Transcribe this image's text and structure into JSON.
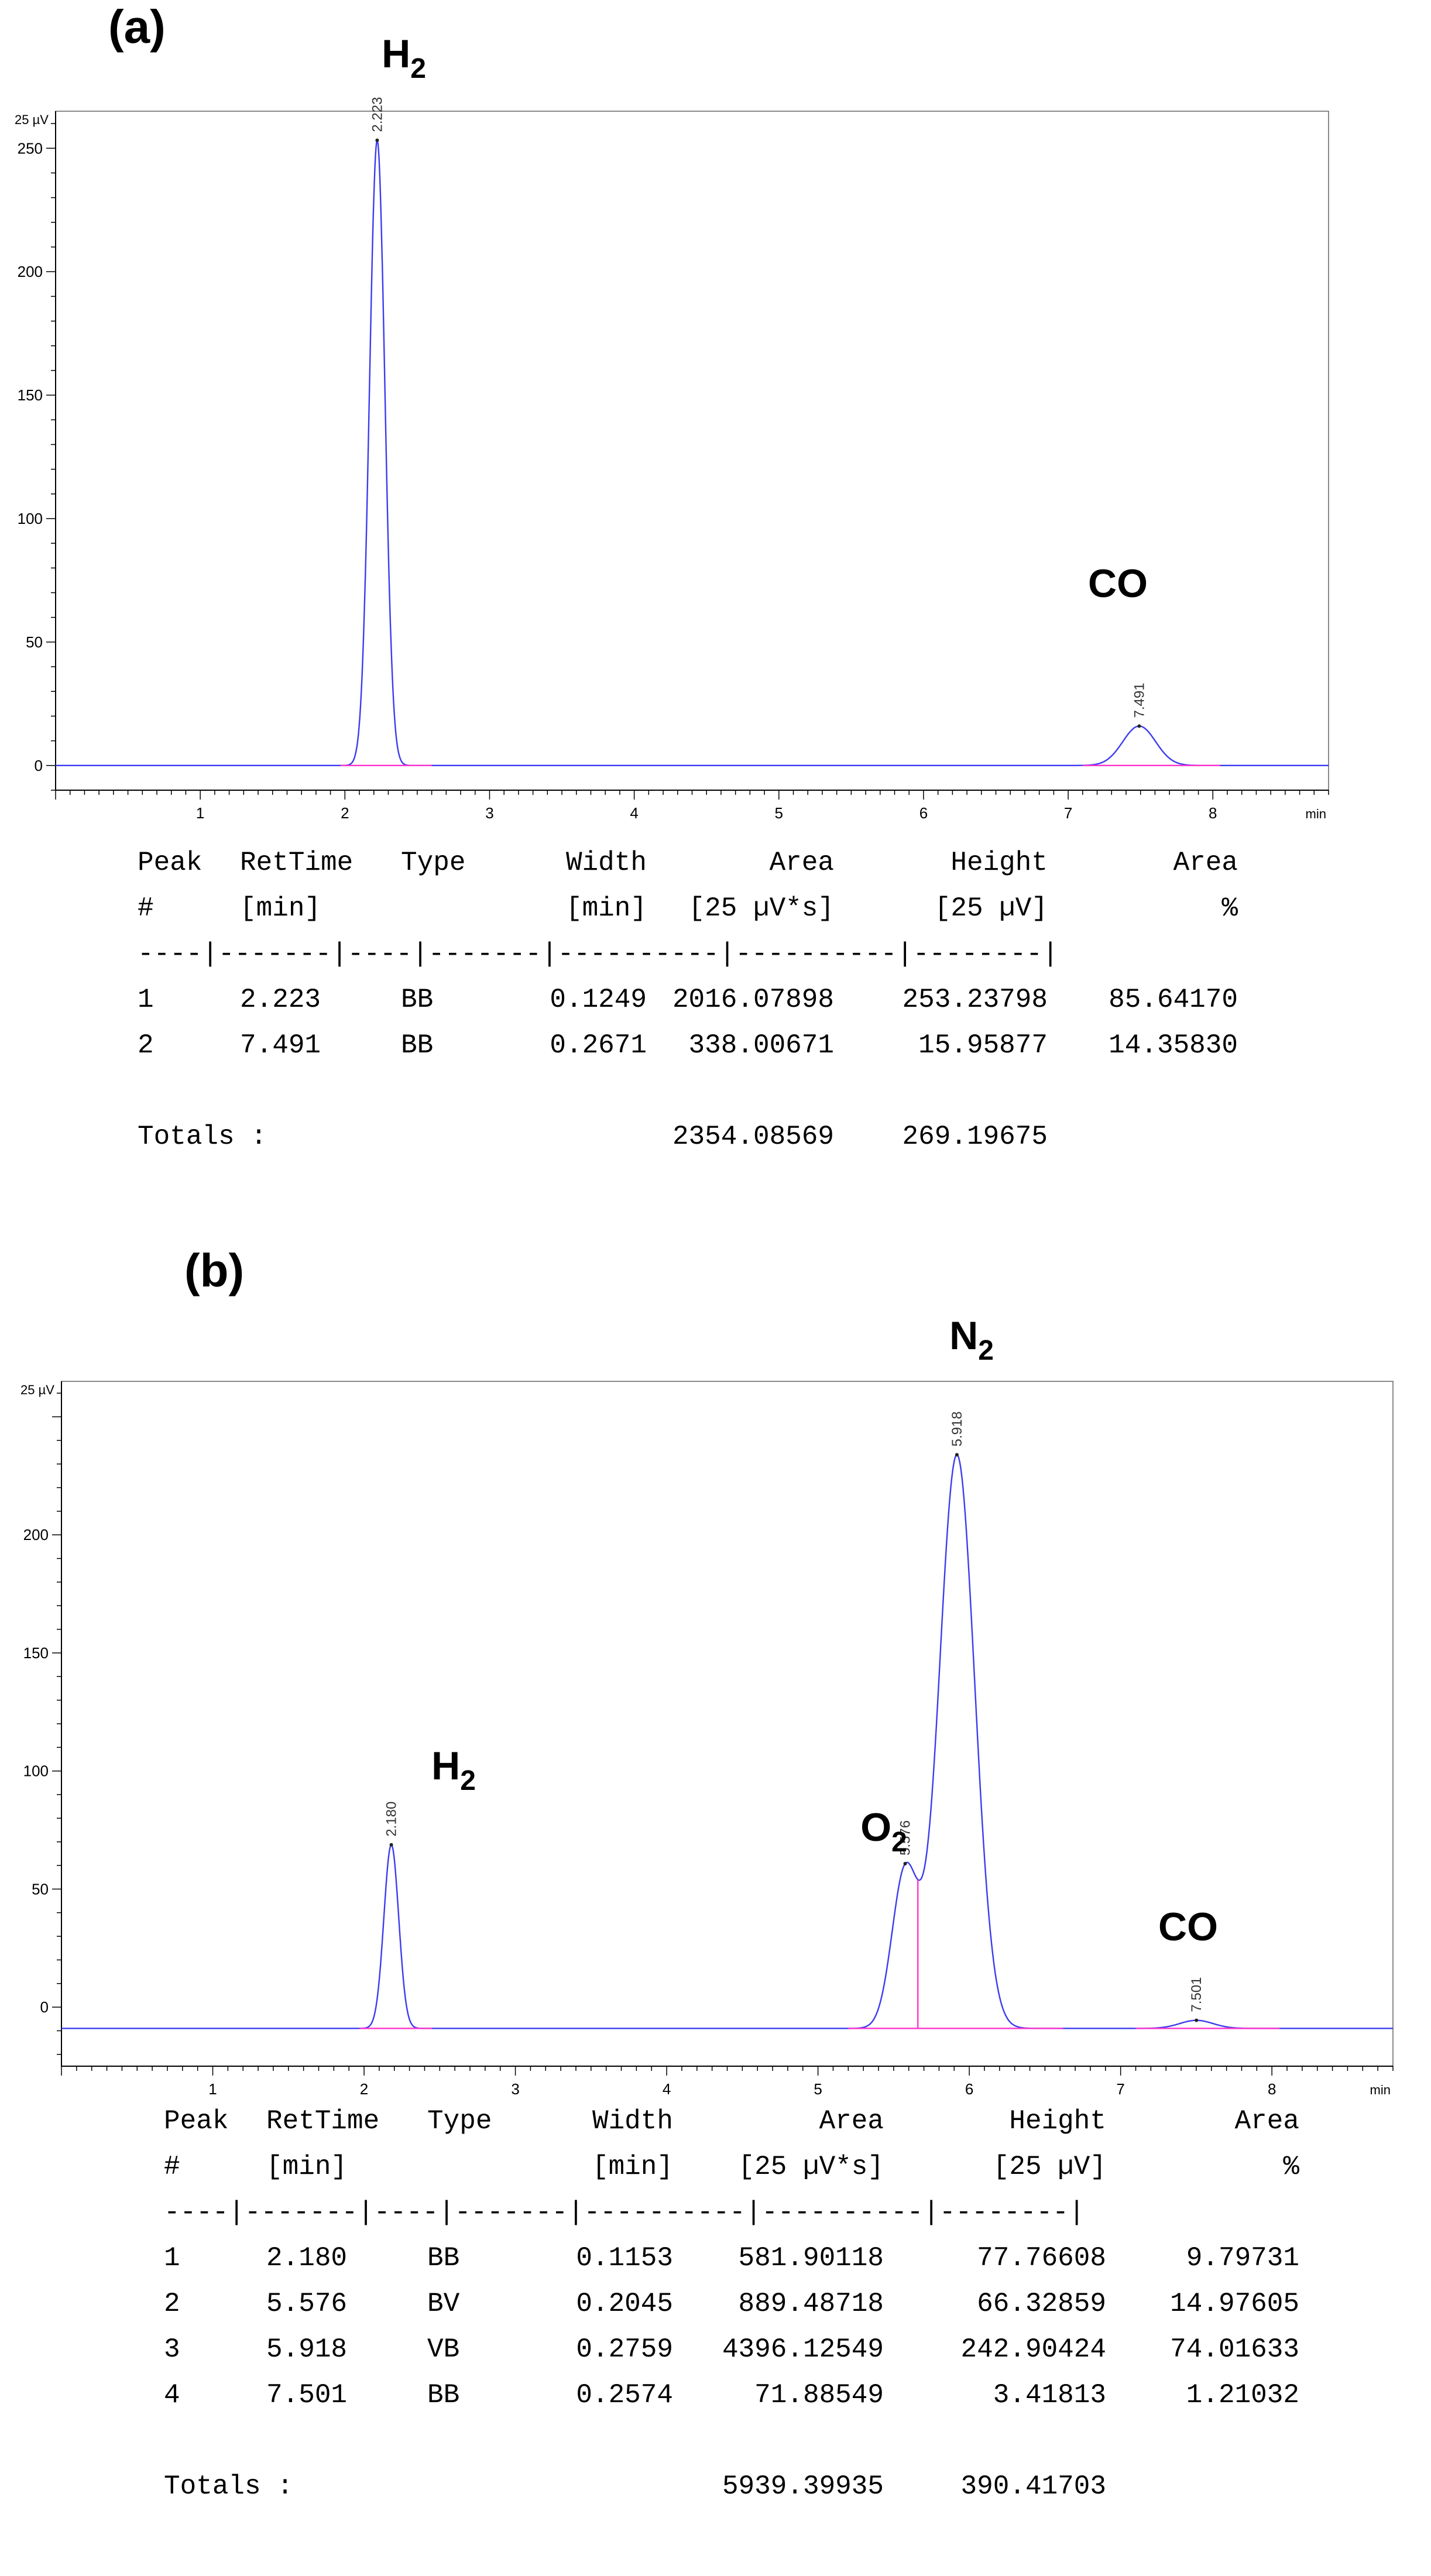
{
  "charts": [
    {
      "panel": "(a)",
      "y_unit": "25 µV",
      "x_unit": "min",
      "compound_labels": [
        {
          "text": "H",
          "sub": "2",
          "rt": 2.223
        },
        {
          "text": "CO",
          "sub": "",
          "rt": 7.491
        }
      ],
      "table": {
        "header1": [
          "Peak",
          "RetTime",
          "Type",
          "Width",
          "Area",
          "Height",
          "Area"
        ],
        "header2": [
          "#",
          "[min]",
          "",
          "[min]",
          "[25 µV*s]",
          "[25 µV]",
          "%"
        ],
        "rows": [
          [
            "1",
            "2.223",
            "BB",
            "0.1249",
            "2016.07898",
            "253.23798",
            "85.64170"
          ],
          [
            "2",
            "7.491",
            "BB",
            "0.2671",
            "338.00671",
            "15.95877",
            "14.35830"
          ]
        ],
        "totals_label": "Totals :",
        "totals_area": "2354.08569",
        "totals_height": "269.19675"
      }
    },
    {
      "panel": "(b)",
      "y_unit": "25 µV",
      "x_unit": "min",
      "compound_labels": [
        {
          "text": "H",
          "sub": "2",
          "rt": 2.18
        },
        {
          "text": "O",
          "sub": "2",
          "rt": 5.576
        },
        {
          "text": "N",
          "sub": "2",
          "rt": 5.918
        },
        {
          "text": "CO",
          "sub": "",
          "rt": 7.501
        }
      ],
      "table": {
        "header1": [
          "Peak",
          "RetTime",
          "Type",
          "Width",
          "Area",
          "Height",
          "Area"
        ],
        "header2": [
          "#",
          "[min]",
          "",
          "[min]",
          "[25 µV*s]",
          "[25 µV]",
          "%"
        ],
        "rows": [
          [
            "1",
            "2.180",
            "BB",
            "0.1153",
            "581.90118",
            "77.76608",
            "9.79731"
          ],
          [
            "2",
            "5.576",
            "BV",
            "0.2045",
            "889.48718",
            "66.32859",
            "14.97605"
          ],
          [
            "3",
            "5.918",
            "VB",
            "0.2759",
            "4396.12549",
            "242.90424",
            "74.01633"
          ],
          [
            "4",
            "7.501",
            "BB",
            "0.2574",
            "71.88549",
            "3.41813",
            "1.21032"
          ]
        ],
        "totals_label": "Totals :",
        "totals_area": "5939.39935",
        "totals_height": "390.41703"
      }
    }
  ],
  "chart_data": [
    {
      "type": "line",
      "x_unit": "min",
      "y_unit": "25 µV",
      "xlim": [
        0,
        8.8
      ],
      "ylim": [
        -10,
        265
      ],
      "x_ticks": [
        1,
        2,
        3,
        4,
        5,
        6,
        7,
        8
      ],
      "y_ticks": [
        0,
        50,
        100,
        150,
        200,
        250
      ],
      "baseline": 0,
      "line_color": "#3b3bf0",
      "integration_color": "#ff33cc",
      "peaks": [
        {
          "rt": 2.223,
          "height": 253.23798,
          "width": 0.1249,
          "label": "2.223"
        },
        {
          "rt": 7.491,
          "height": 15.95877,
          "width": 0.2671,
          "label": "7.491"
        }
      ],
      "integration_ranges": [
        [
          1.97,
          2.6
        ],
        [
          7.1,
          8.05
        ]
      ]
    },
    {
      "type": "line",
      "x_unit": "min",
      "y_unit": "25 µV",
      "xlim": [
        0,
        8.8
      ],
      "ylim": [
        -25,
        265
      ],
      "x_ticks": [
        1,
        2,
        3,
        4,
        5,
        6,
        7,
        8
      ],
      "y_ticks": [
        0,
        50,
        100,
        150,
        200
      ],
      "baseline": -9,
      "line_color": "#3b3bf0",
      "integration_color": "#ff33cc",
      "peaks": [
        {
          "rt": 2.18,
          "height": 77.76608,
          "width": 0.1153,
          "label": "2.180"
        },
        {
          "rt": 5.576,
          "height": 66.32859,
          "width": 0.2045,
          "label": "5.576"
        },
        {
          "rt": 5.918,
          "height": 242.90424,
          "width": 0.2759,
          "label": "5.918"
        },
        {
          "rt": 7.501,
          "height": 3.41813,
          "width": 0.2574,
          "label": "7.501"
        }
      ],
      "integration_ranges": [
        [
          1.97,
          2.45
        ],
        [
          5.2,
          6.62
        ],
        [
          7.1,
          8.05
        ]
      ],
      "valley_drop_rt": 5.66
    }
  ]
}
